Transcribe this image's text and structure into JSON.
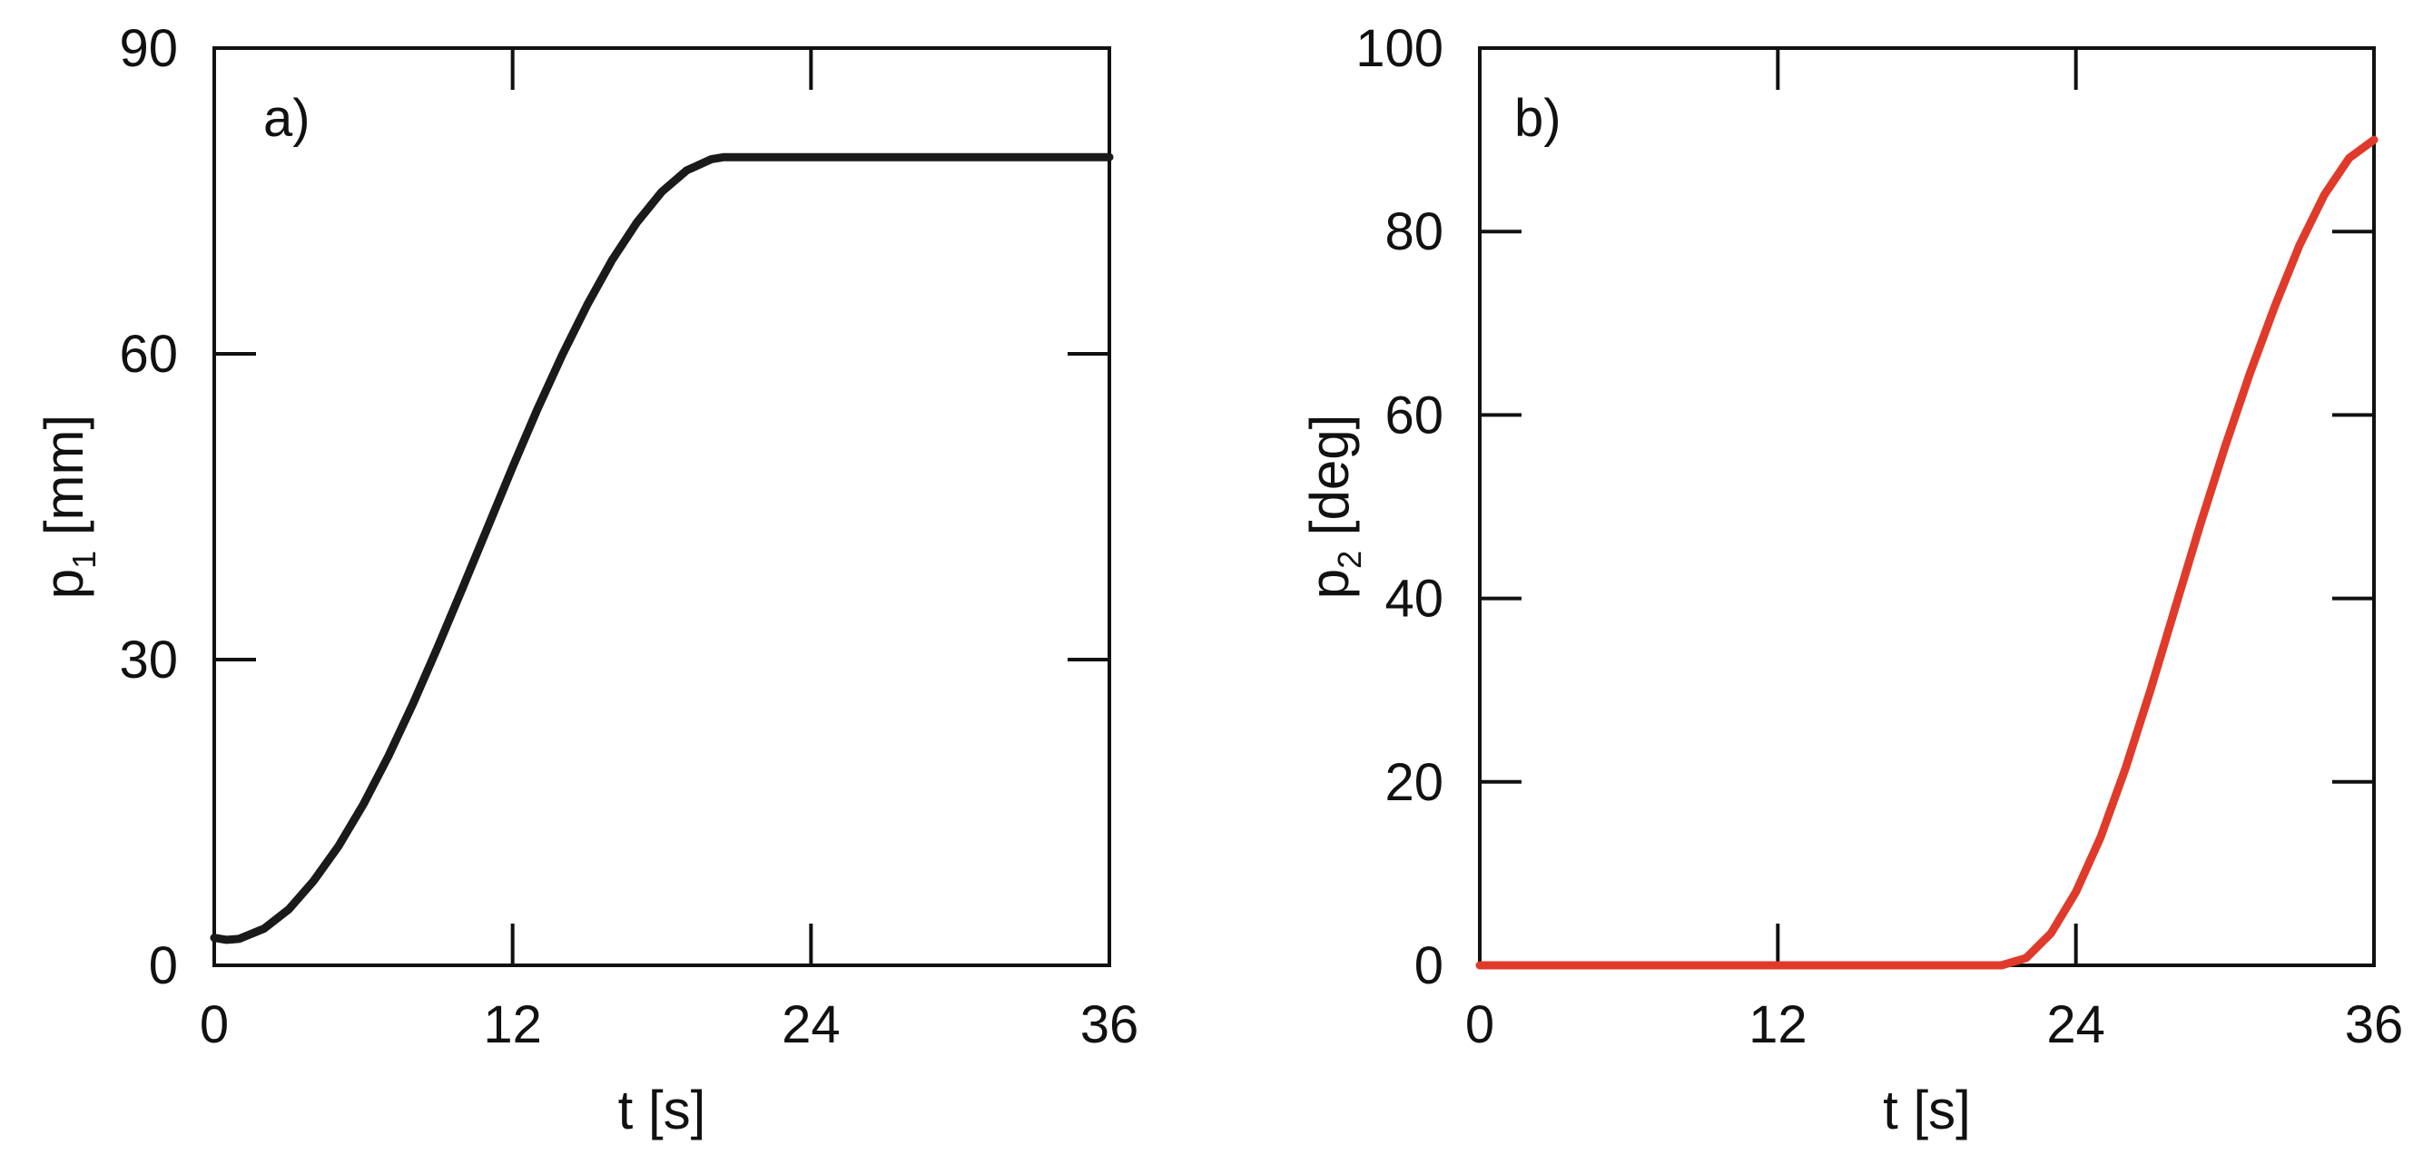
{
  "chart_data": [
    {
      "type": "line",
      "panel_label": "a)",
      "title": "",
      "xlabel": "t [s]",
      "ylabel_main": "p",
      "ylabel_sub": "1",
      "ylabel_unit": " [mm]",
      "xlim": [
        0,
        36
      ],
      "ylim": [
        0,
        90
      ],
      "xticks": [
        0,
        12,
        24,
        36
      ],
      "yticks": [
        0,
        30,
        60,
        90
      ],
      "grid": false,
      "series": [
        {
          "color": "#1a1a1a",
          "x": [
            0,
            0.5,
            1,
            2,
            3,
            4,
            5,
            6,
            7,
            8,
            9,
            10,
            11,
            12,
            13,
            14,
            15,
            16,
            17,
            18,
            19,
            20,
            20.5,
            21,
            24,
            28,
            32,
            36
          ],
          "y": [
            2.7,
            2.5,
            2.6,
            3.6,
            5.5,
            8.3,
            11.7,
            15.8,
            20.5,
            25.7,
            31.3,
            37.1,
            43.0,
            48.9,
            54.6,
            59.9,
            64.8,
            69.2,
            72.9,
            75.9,
            78.0,
            79.1,
            79.3,
            79.3,
            79.3,
            79.3,
            79.3,
            79.3
          ]
        }
      ]
    },
    {
      "type": "line",
      "panel_label": "b)",
      "title": "",
      "xlabel": "t [s]",
      "ylabel_main": "p",
      "ylabel_sub": "2",
      "ylabel_unit": " [deg]",
      "xlim": [
        0,
        36
      ],
      "ylim": [
        0,
        100
      ],
      "xticks": [
        0,
        12,
        24,
        36
      ],
      "yticks": [
        0,
        20,
        40,
        60,
        80,
        100
      ],
      "grid": false,
      "series": [
        {
          "color": "#e03a2a",
          "x": [
            0,
            6,
            12,
            18,
            20,
            21,
            22,
            23,
            24,
            25,
            26,
            27,
            28,
            29,
            30,
            31,
            32,
            33,
            34,
            35,
            36
          ],
          "y": [
            0,
            0,
            0,
            0,
            0,
            0,
            0.8,
            3.5,
            8.0,
            14.0,
            21.5,
            30.0,
            39.0,
            48.0,
            56.5,
            64.5,
            71.8,
            78.5,
            84.0,
            88.0,
            90.0
          ]
        }
      ]
    }
  ]
}
